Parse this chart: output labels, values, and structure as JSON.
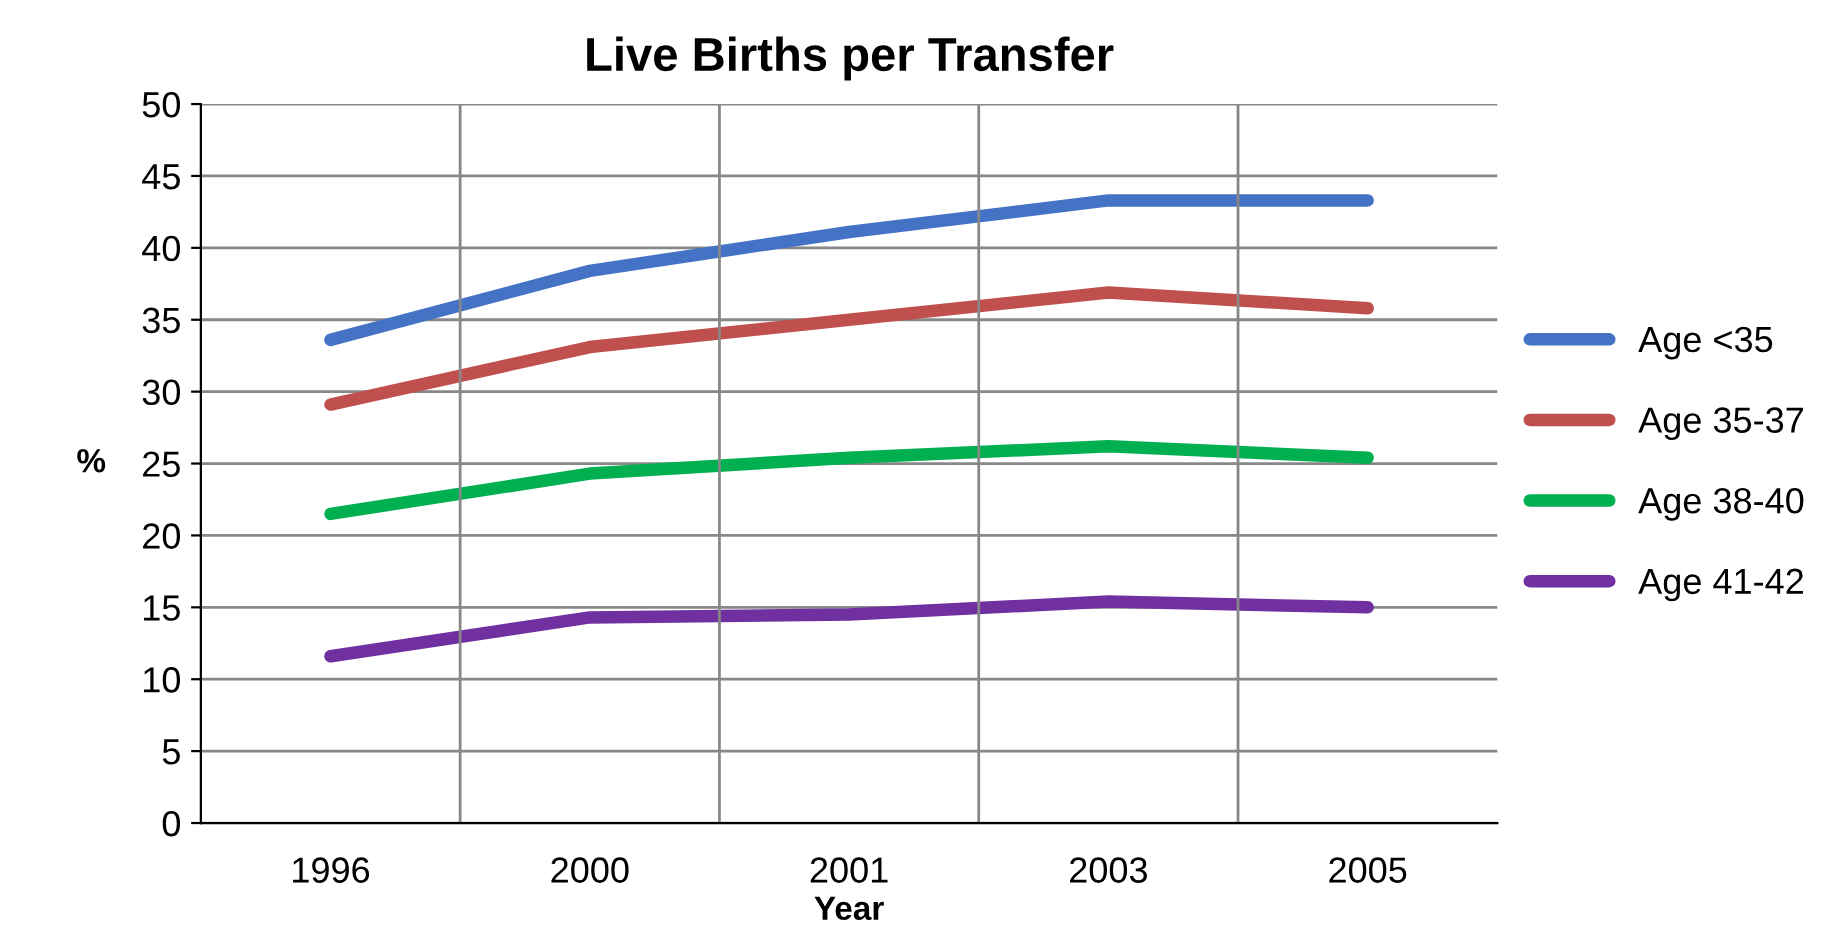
{
  "chart_data": {
    "type": "line",
    "title": "Live Births per Transfer",
    "xlabel": "Year",
    "ylabel": "%",
    "categories": [
      "1996",
      "2000",
      "2001",
      "2003",
      "2005"
    ],
    "series": [
      {
        "name": "Age <35",
        "color": "#4472c4",
        "values": [
          33.6,
          38.4,
          41.1,
          43.3,
          43.3
        ]
      },
      {
        "name": "Age 35-37",
        "color": "#c0504d",
        "values": [
          29.1,
          33.1,
          35.0,
          36.9,
          35.8
        ]
      },
      {
        "name": "Age 38-40",
        "color": "#00b050",
        "values": [
          21.5,
          24.3,
          25.4,
          26.2,
          25.4
        ]
      },
      {
        "name": "Age 41-42",
        "color": "#7030a0",
        "values": [
          11.6,
          14.3,
          14.5,
          15.4,
          15.0
        ]
      }
    ],
    "ylim": [
      0,
      50
    ],
    "yticks": [
      0,
      5,
      10,
      15,
      20,
      25,
      30,
      35,
      40,
      45,
      50
    ],
    "grid": true,
    "legend": "right",
    "marker": "none",
    "line_style": "solid"
  }
}
